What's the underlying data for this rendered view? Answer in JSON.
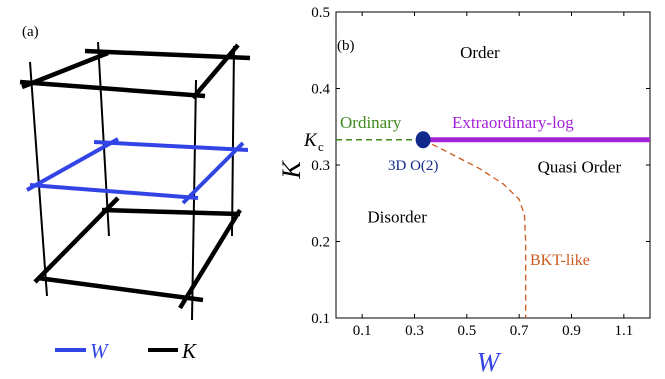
{
  "panel_a": {
    "label": "(a)",
    "legend": [
      {
        "symbol": "W",
        "color": "#3344e6"
      },
      {
        "symbol": "K",
        "color": "#000000"
      }
    ]
  },
  "chart_data": {
    "type": "line",
    "panel_label": "(b)",
    "xlabel": "W",
    "ylabel": "K",
    "xlim": [
      0,
      1.2
    ],
    "ylim": [
      0.1,
      0.5
    ],
    "x_ticks": [
      0.1,
      0.3,
      0.5,
      0.7,
      0.9,
      1.1
    ],
    "x_tick_labels": [
      "0.1",
      "0.3",
      "0.5",
      "0.7",
      "0.9",
      "1.1"
    ],
    "y_ticks": [
      0.1,
      0.2,
      0.3,
      0.4,
      0.5
    ],
    "y_tick_labels": [
      "0.1",
      "0.2",
      "0.3",
      "0.4",
      "0.5"
    ],
    "kc_label": "K",
    "kc_subscript": "c",
    "kc_value": 0.333,
    "regions": {
      "order": {
        "text": "Order",
        "x": 0.55,
        "y": 0.44
      },
      "disorder": {
        "text": "Disorder",
        "x": 0.12,
        "y": 0.225
      },
      "quasi_order": {
        "text": "Quasi Order",
        "x": 0.93,
        "y": 0.29
      }
    },
    "series": [
      {
        "name": "Ordinary",
        "style": "dashed",
        "color": "#3f8a1e",
        "x": [
          0.0,
          0.333
        ],
        "y": [
          0.333,
          0.333
        ]
      },
      {
        "name": "Extraordinary-log",
        "style": "solid",
        "color": "#a323d6",
        "x": [
          0.333,
          1.2
        ],
        "y": [
          0.333,
          0.333
        ]
      },
      {
        "name": "BKT-like",
        "style": "dashed",
        "color": "#cc5a1e",
        "x": [
          0.333,
          0.42,
          0.55,
          0.64,
          0.7,
          0.72,
          0.725,
          0.725
        ],
        "y": [
          0.333,
          0.318,
          0.295,
          0.275,
          0.255,
          0.235,
          0.2,
          0.1
        ]
      }
    ],
    "points": [
      {
        "name": "3D O(2)",
        "x": 0.333,
        "y": 0.333,
        "color": "#102a8c"
      }
    ],
    "annotation_colors": {
      "ordinary": "#3f8a1e",
      "extraordinary": "#a323d6",
      "bkt": "#cc5a1e",
      "o2": "#102a8c",
      "xlabel": "#3344e6"
    }
  }
}
